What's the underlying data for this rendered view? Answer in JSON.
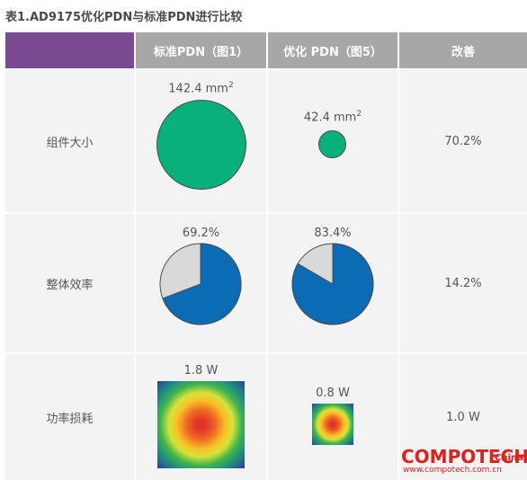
{
  "caption": "表1.AD9175优化PDN与标准PDN进行比较",
  "header": {
    "col_blank": "",
    "col_standard": "标准PDN（图1）",
    "col_optimized": "优化 PDN（图5）",
    "col_improvement": "改善"
  },
  "rows": [
    {
      "label": "组件大小",
      "standard_value": "142.4 mm",
      "standard_unit_sup": "2",
      "optimized_value": "42.4 mm",
      "optimized_unit_sup": "2",
      "improvement": "70.2%"
    },
    {
      "label": "整体效率",
      "standard_value": "69.2%",
      "standard_efficiency": 0.692,
      "optimized_value": "83.4%",
      "optimized_efficiency": 0.834,
      "improvement": "14.2%"
    },
    {
      "label": "功率损耗",
      "standard_value": "1.8 W",
      "optimized_value": "0.8 W",
      "improvement": "1.0 W"
    }
  ],
  "colors": {
    "header_accent": "#7b4b91",
    "header_gray": "#a7a7a7",
    "area_green": "#0ab07c",
    "pie_blue": "#0b6bb5",
    "pie_gray": "#d9d9d9"
  },
  "watermark": {
    "brand": "COMPOTECH",
    "region": "China",
    "url": "www.compotech.com.cn"
  }
}
